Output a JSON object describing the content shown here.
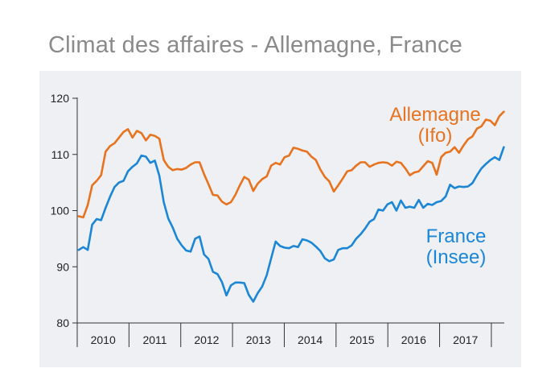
{
  "chart_data": {
    "type": "line",
    "title": "Climat des affaires - Allemagne, France",
    "xlabel": "",
    "ylabel": "",
    "ylim": [
      80,
      120
    ],
    "yticks": [
      80,
      90,
      100,
      110,
      120
    ],
    "year_labels": [
      "2010",
      "2011",
      "2012",
      "2013",
      "2014",
      "2015",
      "2016",
      "2017"
    ],
    "x_start": 2009.5,
    "x_end": 2017.75,
    "grid": false,
    "series": [
      {
        "name": "Allemagne (Ifo)",
        "label_lines": [
          "Allemagne",
          "(Ifo)"
        ],
        "color": "#e8731f",
        "values": [
          99.0,
          98.8,
          101.0,
          104.5,
          105.3,
          106.3,
          110.5,
          111.5,
          112.0,
          113.0,
          114.0,
          114.5,
          113.0,
          114.2,
          113.8,
          112.5,
          113.5,
          113.3,
          112.8,
          109.0,
          107.8,
          107.2,
          107.4,
          107.3,
          107.6,
          108.2,
          108.6,
          108.6,
          106.5,
          104.7,
          102.8,
          102.7,
          101.6,
          101.1,
          101.5,
          102.8,
          104.5,
          106.0,
          105.5,
          103.5,
          104.8,
          105.6,
          106.1,
          108.0,
          108.5,
          108.2,
          109.5,
          109.8,
          111.2,
          111.0,
          110.7,
          110.5,
          109.6,
          109.0,
          107.3,
          106.0,
          105.2,
          103.4,
          104.5,
          105.7,
          107.0,
          107.2,
          108.0,
          108.6,
          108.6,
          107.8,
          108.2,
          108.5,
          108.6,
          108.5,
          108.0,
          108.7,
          108.5,
          107.5,
          106.3,
          106.8,
          107.0,
          107.9,
          108.8,
          108.5,
          106.4,
          109.5,
          110.3,
          110.5,
          111.3,
          110.3,
          111.6,
          112.7,
          113.2,
          114.6,
          115.0,
          116.2,
          116.0,
          115.2,
          116.8,
          117.6
        ]
      },
      {
        "name": "France (Insee)",
        "label_lines": [
          "France",
          "(Insee)"
        ],
        "color": "#1c86d6",
        "values": [
          93.0,
          93.5,
          93.0,
          97.5,
          98.5,
          98.3,
          100.5,
          102.5,
          104.2,
          105.0,
          105.3,
          107.0,
          107.8,
          108.4,
          109.8,
          109.6,
          108.5,
          108.9,
          106.2,
          101.5,
          98.6,
          97.0,
          95.0,
          93.8,
          92.9,
          92.7,
          95.0,
          95.4,
          92.2,
          91.4,
          89.1,
          88.7,
          87.3,
          84.9,
          86.7,
          87.2,
          87.2,
          87.1,
          85.0,
          83.8,
          85.3,
          86.5,
          88.5,
          91.5,
          94.5,
          93.7,
          93.4,
          93.3,
          93.7,
          93.5,
          94.9,
          94.7,
          94.3,
          93.6,
          92.8,
          91.5,
          91.0,
          91.3,
          93.0,
          93.3,
          93.3,
          93.8,
          95.0,
          95.8,
          96.8,
          98.0,
          98.5,
          100.2,
          100.0,
          101.1,
          101.5,
          100.0,
          101.8,
          100.5,
          100.7,
          100.5,
          101.9,
          100.5,
          101.2,
          101.0,
          101.5,
          101.7,
          102.5,
          104.6,
          104.0,
          104.3,
          104.2,
          104.3,
          104.9,
          106.3,
          107.5,
          108.3,
          109.0,
          109.5,
          109.0,
          111.3
        ]
      }
    ]
  }
}
